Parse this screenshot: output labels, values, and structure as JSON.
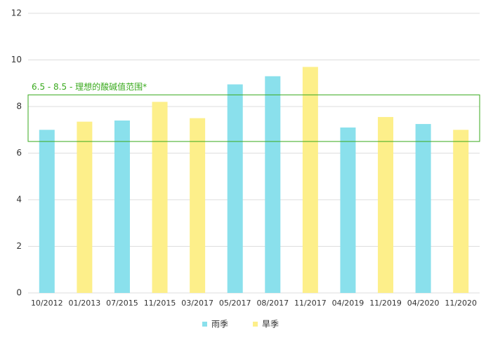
{
  "chart_data": {
    "type": "bar",
    "categories": [
      "10/2012",
      "01/2013",
      "07/2015",
      "11/2015",
      "03/2017",
      "05/2017",
      "08/2017",
      "11/2017",
      "04/2019",
      "11/2019",
      "04/2020",
      "11/2020"
    ],
    "series": [
      {
        "name": "雨季",
        "color": "#8ae0ec",
        "values": [
          7.0,
          null,
          7.4,
          null,
          null,
          8.95,
          9.3,
          null,
          7.1,
          null,
          7.25,
          null
        ]
      },
      {
        "name": "旱季",
        "color": "#fdef8a",
        "values": [
          null,
          7.35,
          null,
          8.2,
          7.5,
          null,
          null,
          9.7,
          null,
          7.55,
          null,
          7.0
        ]
      }
    ],
    "ylim": [
      0,
      12
    ],
    "yticks": [
      0,
      2,
      4,
      6,
      8,
      10,
      12
    ],
    "grid": true,
    "band": {
      "range": [
        6.5,
        8.5
      ],
      "label": "6.5 - 8.5 - 理想的酸碱值范围*",
      "color": "#3aaa1e"
    }
  }
}
